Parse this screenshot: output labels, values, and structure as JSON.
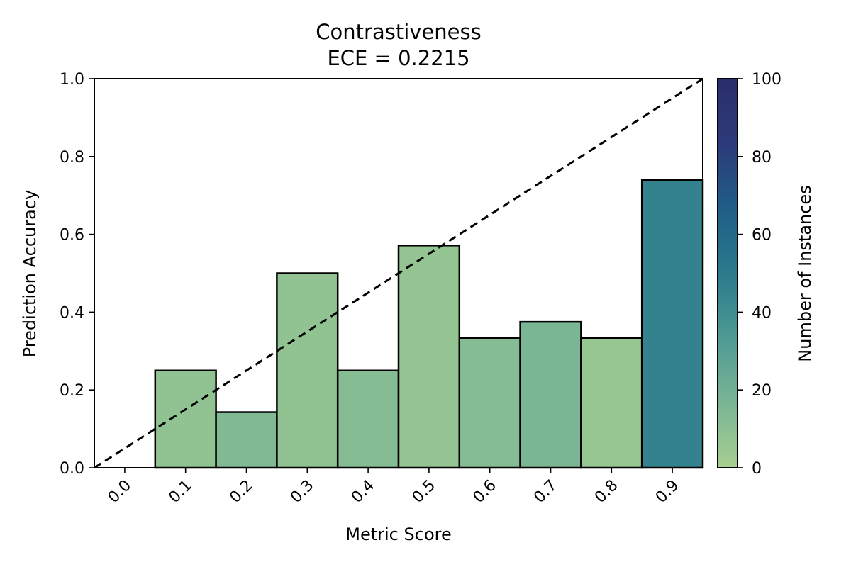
{
  "chart_data": {
    "type": "bar",
    "title": "Contrastiveness",
    "subtitle": "ECE = 0.2215",
    "xlabel": "Metric Score",
    "ylabel": "Prediction Accuracy",
    "xlim": [
      -0.05,
      0.95
    ],
    "ylim": [
      0,
      1.0
    ],
    "bin_width": 0.1,
    "x_ticks": [
      "0.0",
      "0.1",
      "0.2",
      "0.3",
      "0.4",
      "0.5",
      "0.6",
      "0.7",
      "0.8",
      "0.9"
    ],
    "y_ticks": [
      "0.0",
      "0.2",
      "0.4",
      "0.6",
      "0.8",
      "1.0"
    ],
    "bars": [
      {
        "x": 0.1,
        "accuracy": 0.25,
        "instances": 8
      },
      {
        "x": 0.2,
        "accuracy": 0.1429,
        "instances": 14
      },
      {
        "x": 0.3,
        "accuracy": 0.5,
        "instances": 8
      },
      {
        "x": 0.4,
        "accuracy": 0.25,
        "instances": 12
      },
      {
        "x": 0.5,
        "accuracy": 0.5714,
        "instances": 7
      },
      {
        "x": 0.6,
        "accuracy": 0.3333,
        "instances": 12
      },
      {
        "x": 0.7,
        "accuracy": 0.375,
        "instances": 16
      },
      {
        "x": 0.8,
        "accuracy": 0.3333,
        "instances": 6
      },
      {
        "x": 0.9,
        "accuracy": 0.7391,
        "instances": 46
      }
    ],
    "reference_line": {
      "from": [
        -0.05,
        0.0
      ],
      "to": [
        0.95,
        1.0
      ],
      "style": "dashed"
    },
    "colorbar": {
      "label": "Number of Instances",
      "range": [
        0,
        100
      ],
      "ticks": [
        "0",
        "20",
        "40",
        "60",
        "80",
        "100"
      ],
      "colormap": [
        "#a7cf91",
        "#79b594",
        "#4e9a94",
        "#2a7a8c",
        "#1f5e87",
        "#2c3a79",
        "#2b2f6b"
      ]
    },
    "grid": false,
    "legend": "none"
  }
}
